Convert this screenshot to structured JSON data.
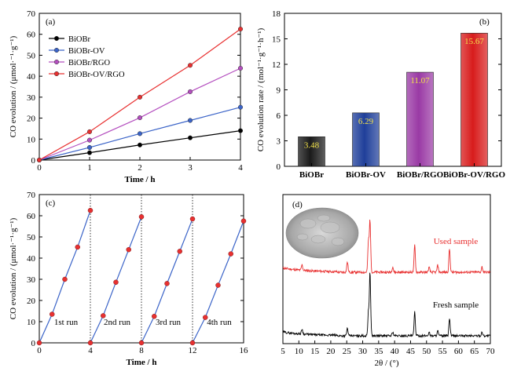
{
  "chart_data": [
    {
      "panel": "(a)",
      "type": "line",
      "xlabel": "Time / h",
      "ylabel": "CO evolution / (μmol·⁻¹·g⁻¹)",
      "xlim": [
        0,
        4
      ],
      "ylim": [
        0,
        70
      ],
      "xticks": [
        0,
        1,
        2,
        3,
        4
      ],
      "yticks": [
        0,
        10,
        20,
        30,
        40,
        50,
        60,
        70
      ],
      "legend_position": "top-left",
      "x": [
        0,
        1,
        2,
        3,
        4
      ],
      "series": [
        {
          "name": "BiOBr",
          "color": "#000000",
          "values": [
            0,
            3.5,
            7.2,
            10.6,
            14.0
          ]
        },
        {
          "name": "BiOBr-OV",
          "color": "#3b64c8",
          "values": [
            0,
            6.0,
            12.6,
            18.9,
            25.2
          ]
        },
        {
          "name": "BiOBr/RGO",
          "color": "#b44fbf",
          "values": [
            0,
            9.5,
            20.2,
            32.6,
            43.8
          ]
        },
        {
          "name": "BiOBr-OV/RGO",
          "color": "#e83030",
          "values": [
            0,
            13.5,
            30.0,
            45.2,
            62.5
          ]
        }
      ]
    },
    {
      "panel": "(b)",
      "type": "bar",
      "ylabel": "CO evolution rate / (mol⁻¹·g⁻¹·h⁻¹)",
      "ylim": [
        0,
        18
      ],
      "yticks": [
        0,
        3,
        6,
        9,
        12,
        15,
        18
      ],
      "categories": [
        "BiOBr",
        "BiOBr-OV",
        "BiOBr/RGO",
        "BiOBr-OV/RGO"
      ],
      "values": [
        3.48,
        6.29,
        11.07,
        15.67
      ],
      "value_labels": [
        "3.48",
        "6.29",
        "11.07",
        "15.67"
      ],
      "colors": [
        "#1a1a1a",
        "#1f3f9a",
        "#9a3aa5",
        "#d81c1c"
      ]
    },
    {
      "panel": "(c)",
      "type": "line",
      "xlabel": "Time / h",
      "ylabel": "CO evolution / (μmol·⁻¹·g⁻¹)",
      "xlim": [
        0,
        16
      ],
      "ylim": [
        0,
        70
      ],
      "xticks": [
        0,
        4,
        8,
        12,
        16
      ],
      "yticks": [
        0,
        10,
        20,
        30,
        40,
        50,
        60,
        70
      ],
      "line_color": "#3b64c8",
      "marker_color": "#e83030",
      "divider_x": [
        4,
        8,
        12,
        16
      ],
      "runs": [
        {
          "label": "1st run",
          "x": [
            0,
            1,
            2,
            3,
            4
          ],
          "y": [
            0,
            13.5,
            30.0,
            45.2,
            62.5
          ]
        },
        {
          "label": "2nd run",
          "x": [
            4,
            5,
            6,
            7,
            8
          ],
          "y": [
            0,
            12.8,
            28.6,
            44.0,
            59.5
          ]
        },
        {
          "label": "3rd run",
          "x": [
            8,
            9,
            10,
            11,
            12
          ],
          "y": [
            0,
            12.5,
            28.0,
            43.2,
            58.5
          ]
        },
        {
          "label": "4th run",
          "x": [
            12,
            13,
            14,
            15,
            16
          ],
          "y": [
            0,
            12.0,
            27.2,
            42.0,
            57.5
          ]
        }
      ]
    },
    {
      "panel": "(d)",
      "type": "line",
      "xlabel": "2θ / (°)",
      "xlim": [
        5,
        70
      ],
      "xticks": [
        5,
        10,
        15,
        20,
        25,
        30,
        35,
        40,
        45,
        50,
        55,
        60,
        65,
        70
      ],
      "series": [
        {
          "name": "Used sample",
          "color": "#e83030",
          "peaks": [
            [
              11,
              0.8
            ],
            [
              25.2,
              1.5
            ],
            [
              31.8,
              4.5
            ],
            [
              32.3,
              7.5
            ],
            [
              39.4,
              0.8
            ],
            [
              46.3,
              4.0
            ],
            [
              50.8,
              0.7
            ],
            [
              53.5,
              1.0
            ],
            [
              57.2,
              3.4
            ],
            [
              67.4,
              0.8
            ]
          ]
        },
        {
          "name": "Fresh sample",
          "color": "#000000",
          "peaks": [
            [
              11,
              0.8
            ],
            [
              25.2,
              1.2
            ],
            [
              31.8,
              3.8
            ],
            [
              32.3,
              10.0
            ],
            [
              39.4,
              0.6
            ],
            [
              46.3,
              3.8
            ],
            [
              50.8,
              0.6
            ],
            [
              53.5,
              0.8
            ],
            [
              57.2,
              2.8
            ],
            [
              67.4,
              0.6
            ]
          ]
        }
      ]
    }
  ]
}
